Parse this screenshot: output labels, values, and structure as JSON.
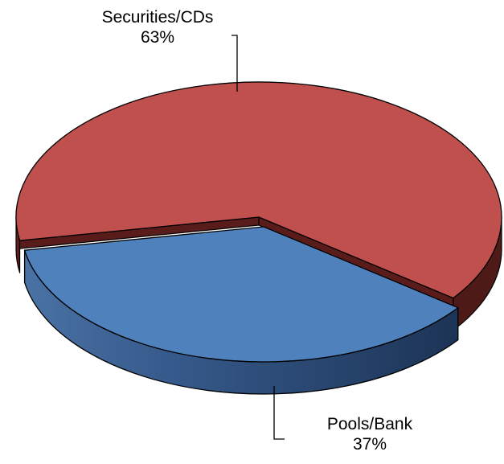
{
  "chart_data": {
    "type": "pie",
    "style": "3d-exploded",
    "slices": [
      {
        "label": "Securities/CDs",
        "pct_label": "63%",
        "value": 63,
        "color": "#c0504d"
      },
      {
        "label": "Pools/Bank",
        "pct_label": "37%",
        "value": 37,
        "color": "#4f81bd"
      }
    ],
    "legend": "none",
    "data_labels": "outside-with-leader-lines"
  }
}
